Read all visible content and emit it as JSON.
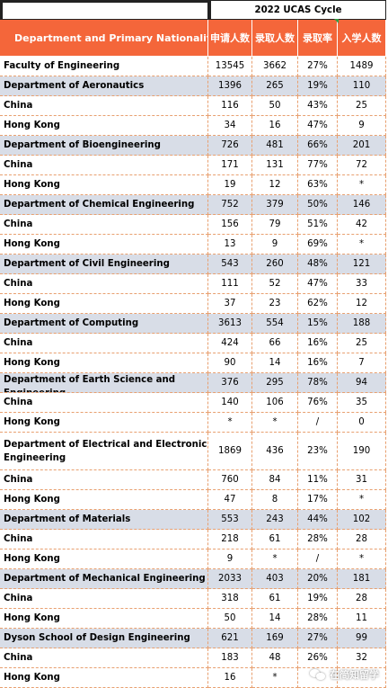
{
  "cycle_title": "2022 UCAS Cycle",
  "headers": {
    "department": "Department and Primary Nationality",
    "applications": "申请人数",
    "offers": "录取人数",
    "offer_rate": "录取率",
    "enrolled": "入学人数"
  },
  "rows": [
    {
      "type": "faculty",
      "name": "Faculty of Engineering",
      "applications": "13545",
      "offers": "3662",
      "rate": "27%",
      "enrolled": "1489"
    },
    {
      "type": "dept",
      "name": "Department of Aeronautics",
      "applications": "1396",
      "offers": "265",
      "rate": "19%",
      "enrolled": "110"
    },
    {
      "type": "sub",
      "name": "China",
      "applications": "116",
      "offers": "50",
      "rate": "43%",
      "enrolled": "25"
    },
    {
      "type": "sub",
      "name": "Hong Kong",
      "applications": "34",
      "offers": "16",
      "rate": "47%",
      "enrolled": "9"
    },
    {
      "type": "dept",
      "name": "Department of Bioengineering",
      "applications": "726",
      "offers": "481",
      "rate": "66%",
      "enrolled": "201"
    },
    {
      "type": "sub",
      "name": "China",
      "applications": "171",
      "offers": "131",
      "rate": "77%",
      "enrolled": "72"
    },
    {
      "type": "sub",
      "name": "Hong Kong",
      "applications": "19",
      "offers": "12",
      "rate": "63%",
      "enrolled": "*"
    },
    {
      "type": "dept",
      "name": "Department of Chemical Engineering",
      "applications": "752",
      "offers": "379",
      "rate": "50%",
      "enrolled": "146"
    },
    {
      "type": "sub",
      "name": "China",
      "applications": "156",
      "offers": "79",
      "rate": "51%",
      "enrolled": "42"
    },
    {
      "type": "sub",
      "name": "Hong Kong",
      "applications": "13",
      "offers": "9",
      "rate": "69%",
      "enrolled": "*"
    },
    {
      "type": "dept",
      "name": "Department of Civil Engineering",
      "applications": "543",
      "offers": "260",
      "rate": "48%",
      "enrolled": "121"
    },
    {
      "type": "sub",
      "name": "China",
      "applications": "111",
      "offers": "52",
      "rate": "47%",
      "enrolled": "33"
    },
    {
      "type": "sub",
      "name": "Hong Kong",
      "applications": "37",
      "offers": "23",
      "rate": "62%",
      "enrolled": "12"
    },
    {
      "type": "dept",
      "name": "Department of Computing",
      "applications": "3613",
      "offers": "554",
      "rate": "15%",
      "enrolled": "188"
    },
    {
      "type": "sub",
      "name": "China",
      "applications": "424",
      "offers": "66",
      "rate": "16%",
      "enrolled": "25"
    },
    {
      "type": "sub",
      "name": "Hong Kong",
      "applications": "90",
      "offers": "14",
      "rate": "16%",
      "enrolled": "7"
    },
    {
      "type": "dept",
      "name": "Department of Earth Science and Engineering",
      "applications": "376",
      "offers": "295",
      "rate": "78%",
      "enrolled": "94",
      "clip": true
    },
    {
      "type": "sub",
      "name": "China",
      "applications": "140",
      "offers": "106",
      "rate": "76%",
      "enrolled": "35"
    },
    {
      "type": "sub",
      "name": "Hong Kong",
      "applications": "*",
      "offers": "*",
      "rate": "/",
      "enrolled": "0"
    },
    {
      "type": "faculty",
      "name": "Department of Electrical and Electronic Engineering",
      "applications": "1869",
      "offers": "436",
      "rate": "23%",
      "enrolled": "190",
      "wrap": true
    },
    {
      "type": "sub",
      "name": "China",
      "applications": "760",
      "offers": "84",
      "rate": "11%",
      "enrolled": "31"
    },
    {
      "type": "sub",
      "name": "Hong Kong",
      "applications": "47",
      "offers": "8",
      "rate": "17%",
      "enrolled": "*"
    },
    {
      "type": "dept",
      "name": "Department of Materials",
      "applications": "553",
      "offers": "243",
      "rate": "44%",
      "enrolled": "102"
    },
    {
      "type": "sub",
      "name": "China",
      "applications": "218",
      "offers": "61",
      "rate": "28%",
      "enrolled": "28"
    },
    {
      "type": "sub",
      "name": "Hong Kong",
      "applications": "9",
      "offers": "*",
      "rate": "/",
      "enrolled": "*"
    },
    {
      "type": "dept",
      "name": "Department of Mechanical Engineering",
      "applications": "2033",
      "offers": "403",
      "rate": "20%",
      "enrolled": "181"
    },
    {
      "type": "sub",
      "name": "China",
      "applications": "318",
      "offers": "61",
      "rate": "19%",
      "enrolled": "28"
    },
    {
      "type": "sub",
      "name": "Hong Kong",
      "applications": "50",
      "offers": "14",
      "rate": "28%",
      "enrolled": "11"
    },
    {
      "type": "dept",
      "name": "Dyson School of Design Engineering",
      "applications": "621",
      "offers": "169",
      "rate": "27%",
      "enrolled": "99"
    },
    {
      "type": "sub",
      "name": "China",
      "applications": "183",
      "offers": "48",
      "rate": "26%",
      "enrolled": "32"
    },
    {
      "type": "sub",
      "name": "Hong Kong",
      "applications": "16",
      "offers": "*",
      "rate": "",
      "enrolled": ""
    }
  ],
  "watermark": {
    "icon": "wechat-icon",
    "text": "在简知留学"
  },
  "colors": {
    "header_bg": "#f4663a",
    "dept_bg": "#d8dde7",
    "grid_line": "#e8a070"
  }
}
